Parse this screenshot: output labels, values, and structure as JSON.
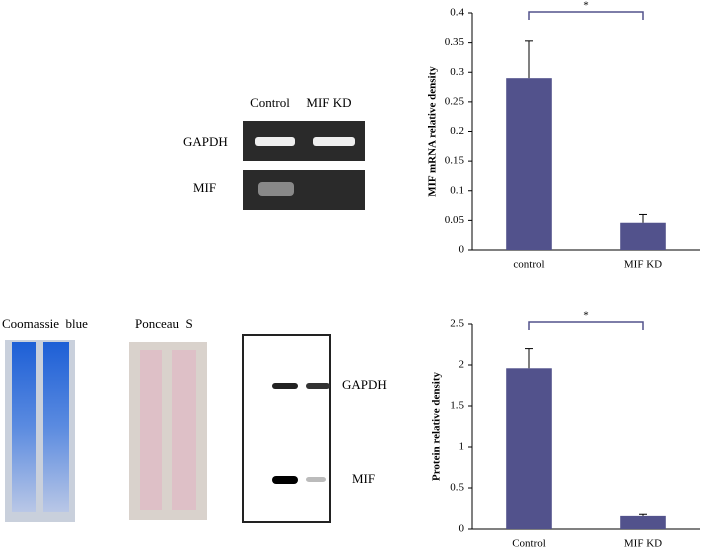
{
  "chart_data": [
    {
      "type": "bar",
      "y_label": "MIF mRNA relative density",
      "annotation": "*",
      "categories": [
        "control",
        "MIF KD"
      ],
      "values": [
        0.29,
        0.046
      ],
      "errors": [
        0.063,
        0.014
      ],
      "color": "#52528c",
      "ylim": [
        0,
        0.4
      ],
      "yticks": [
        0,
        0.05,
        0.1,
        0.15,
        0.2,
        0.25,
        0.3,
        0.35,
        0.4
      ]
    },
    {
      "type": "bar",
      "y_label": "Protein relative density",
      "annotation": "*",
      "categories": [
        "Control",
        "MIF KD"
      ],
      "values": [
        1.96,
        0.16
      ],
      "errors": [
        0.24,
        0.02
      ],
      "color": "#52528c",
      "ylim": [
        0,
        2.5
      ],
      "yticks": [
        0,
        0.5,
        1,
        1.5,
        2,
        2.5
      ]
    }
  ],
  "gels": {
    "rt_pcr": {
      "lanes": [
        "Control",
        "MIF KD"
      ],
      "rows": [
        "GAPDH",
        "MIF"
      ]
    },
    "stains": [
      "Coomassie  blue",
      "Ponceau  S"
    ],
    "western": {
      "bands": [
        "GAPDH",
        "MIF"
      ]
    }
  }
}
